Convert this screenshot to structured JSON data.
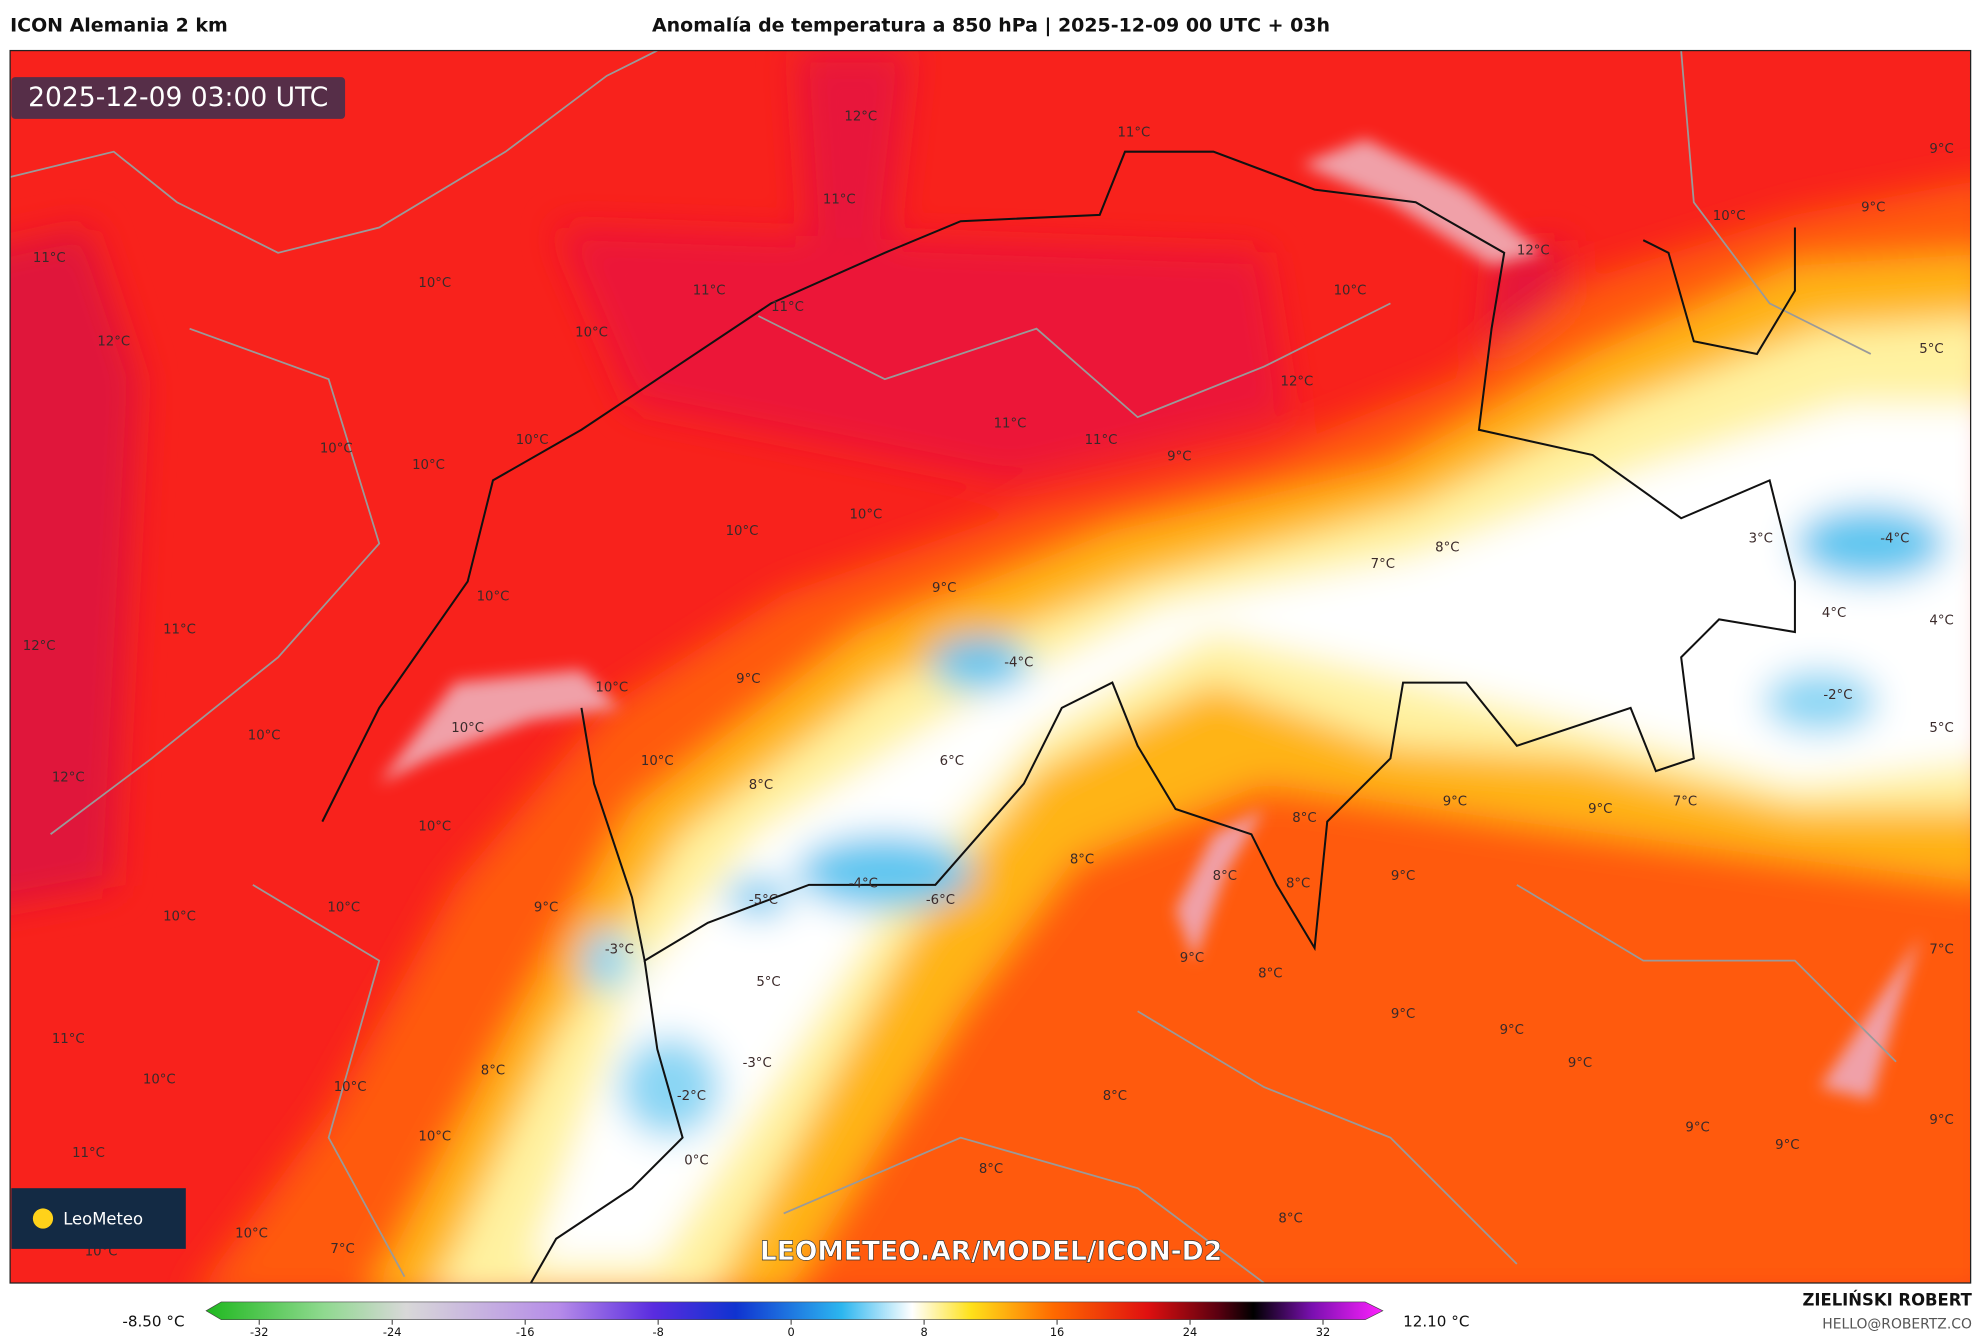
{
  "header": {
    "model": "ICON Alemania 2 km",
    "title": "Anomalía de temperatura a 850 hPa | 2025-12-09 00 UTC + 03h"
  },
  "map": {
    "timestamp": "2025-12-09 03:00 UTC",
    "logo": "LeoMeteo",
    "watermark": "LEOMETEO.AR/MODEL/ICON-D2",
    "labels": [
      "12°C",
      "11°C",
      "9°C",
      "11°C",
      "9°C",
      "10°C",
      "11°C",
      "10°C",
      "12°C",
      "11°C",
      "11°C",
      "10°C",
      "12°C",
      "10°C",
      "5°C",
      "12°C",
      "10°C",
      "10°C",
      "10°C",
      "11°C",
      "11°C",
      "9°C",
      "10°C",
      "10°C",
      "3°C",
      "-4°C",
      "7°C",
      "8°C",
      "9°C",
      "10°C",
      "11°C",
      "4°C",
      "4°C",
      "12°C",
      "-4°C",
      "9°C",
      "10°C",
      "-2°C",
      "10°C",
      "10°C",
      "5°C",
      "10°C",
      "6°C",
      "12°C",
      "8°C",
      "9°C",
      "9°C",
      "7°C",
      "8°C",
      "10°C",
      "8°C",
      "8°C",
      "9°C",
      "8°C",
      "-4°C",
      "-5°C",
      "-6°C",
      "10°C",
      "10°C",
      "9°C",
      "-3°C",
      "7°C",
      "9°C",
      "8°C",
      "5°C",
      "9°C",
      "9°C",
      "11°C",
      "9°C",
      "-3°C",
      "8°C",
      "10°C",
      "10°C",
      "-2°C",
      "8°C",
      "9°C",
      "9°C",
      "10°C",
      "9°C",
      "11°C",
      "0°C",
      "8°C",
      "8°C",
      "10°C",
      "7°C",
      "10°C"
    ]
  },
  "colorbar": {
    "min_label": "-8.50 °C",
    "max_label": "12.10 °C",
    "lim": [
      -35.2,
      35.6
    ],
    "ticks": [
      -32,
      -24,
      -16,
      -8,
      0,
      8,
      16,
      24,
      32
    ]
  },
  "credits": {
    "author": "ZIELIŃSKI ROBERT",
    "email": "HELLO@ROBERTZ.CO"
  }
}
